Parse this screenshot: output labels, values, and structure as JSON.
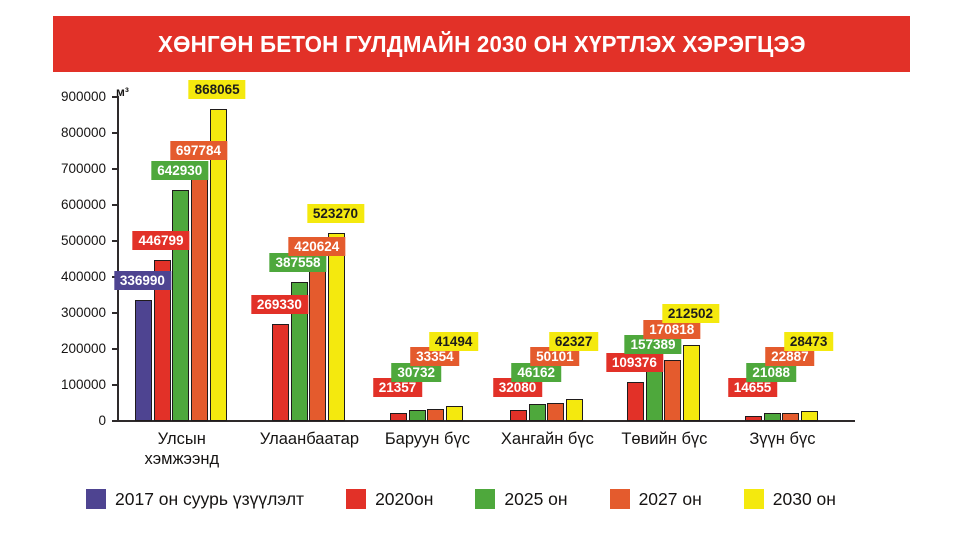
{
  "title": "ХӨНГӨН БЕТОН ГУЛДМАЙН 2030 ОН ХҮРТЛЭХ ХЭРЭГЦЭЭ",
  "banner_color": "#e23128",
  "chart_data": {
    "type": "bar",
    "title": "ХӨНГӨН БЕТОН ГУЛДМАЙН 2030 ОН ХҮРТЛЭХ ХЭРЭГЦЭЭ",
    "unit_label": "м³",
    "ylim": [
      0,
      900000
    ],
    "ytick_step": 100000,
    "yticks": [
      "0",
      "100000",
      "200000",
      "300000",
      "400000",
      "500000",
      "600000",
      "700000",
      "800000",
      "900000"
    ],
    "grid": "off",
    "legend_position": "bottom",
    "categories": [
      "Улсын хэмжээнд",
      "Улаанбаатар",
      "Баруун бүс",
      "Хангайн бүс",
      "Төвийн бүс",
      "Зүүн бүс"
    ],
    "series": [
      {
        "name": "2017 он суурь үзүүлэлт",
        "color": "#4e4491",
        "label_text_color": "#ffffff",
        "values": [
          336990,
          null,
          null,
          null,
          null,
          null
        ]
      },
      {
        "name": "2020он",
        "color": "#e23128",
        "label_text_color": "#ffffff",
        "values": [
          446799,
          269330,
          21357,
          32080,
          109376,
          14655
        ]
      },
      {
        "name": "2025 он",
        "color": "#4ea83c",
        "label_text_color": "#ffffff",
        "values": [
          642930,
          387558,
          30732,
          46162,
          157389,
          21088
        ]
      },
      {
        "name": "2027 он",
        "color": "#e45b2d",
        "label_text_color": "#ffffff",
        "values": [
          697784,
          420624,
          33354,
          50101,
          170818,
          22887
        ]
      },
      {
        "name": "2030 он",
        "color": "#f4e90e",
        "label_text_color": "#1d1d1b",
        "values": [
          868065,
          523270,
          41494,
          62327,
          212502,
          28473
        ]
      }
    ]
  }
}
